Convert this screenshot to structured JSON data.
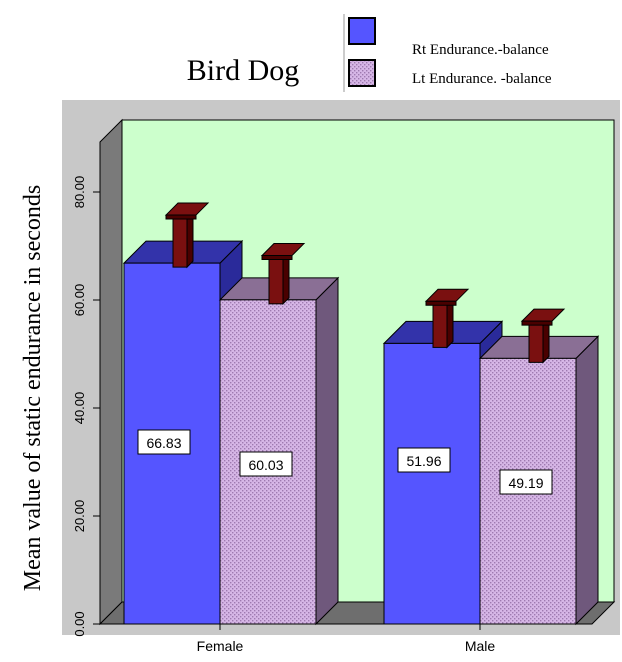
{
  "chart_data": {
    "type": "bar",
    "title": "Bird Dog",
    "xlabel": "",
    "ylabel": "Mean value of static endurance in seconds",
    "categories": [
      "Female",
      "Male"
    ],
    "series": [
      {
        "name": "Rt Endurance.-balance",
        "values": [
          66.83,
          51.96
        ],
        "value_labels": [
          "66.83",
          "51.96"
        ],
        "error": [
          8.9,
          7.8
        ]
      },
      {
        "name": "Lt Endurance. -balance",
        "values": [
          60.03,
          49.19
        ],
        "value_labels": [
          "60.03",
          "49.19"
        ],
        "error": [
          8.2,
          6.9
        ]
      }
    ],
    "ylim": [
      0,
      90
    ],
    "yticks": [
      0,
      20,
      40,
      60,
      80
    ],
    "ytick_labels": [
      "0.00",
      "20.00",
      "40.00",
      "60.00",
      "80.00"
    ],
    "legend_position": "top-right",
    "grid": false,
    "style": "3d"
  },
  "colors": {
    "outer_background": "#c8c8c8",
    "plot_background": "#ccffcc",
    "side_wall": "#7a7a7a",
    "floor": "#6e6e6e",
    "rt_front": "#5555ff",
    "rt_top": "#3333aa",
    "rt_side": "#2a2a9a",
    "lt_front": "#d6b6e6",
    "lt_pattern_dot": "#9e7ab0",
    "lt_top": "#8a6f95",
    "lt_side": "#6f587c",
    "error_bar": "#7a1010",
    "error_bar_dark": "#4a0000"
  }
}
